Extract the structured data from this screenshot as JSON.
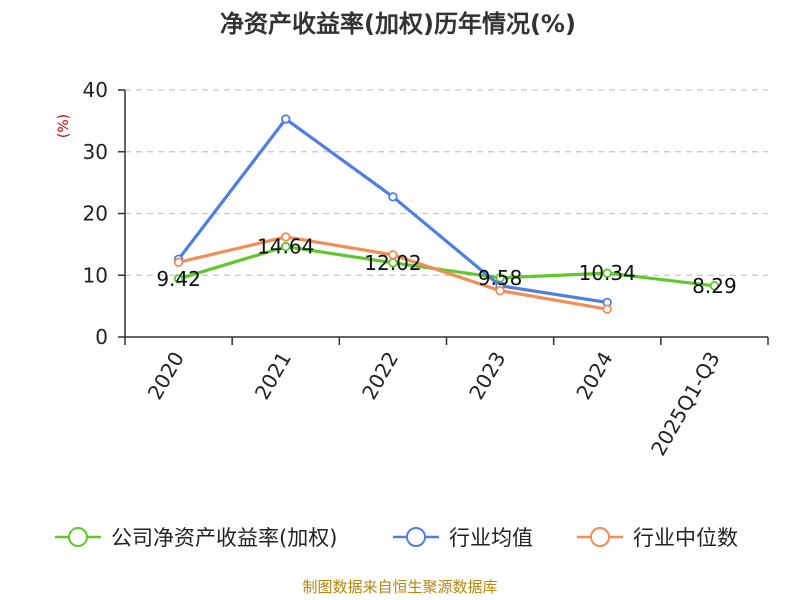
{
  "chart_data": {
    "type": "line",
    "title": "净资产收益率(加权)历年情况(%)",
    "ylabel": "(%)",
    "xlabel": "",
    "categories": [
      "2020",
      "2021",
      "2022",
      "2023",
      "2024",
      "2025Q1-Q3"
    ],
    "ylim": [
      0,
      40
    ],
    "yticks": [
      0,
      10,
      20,
      30,
      40
    ],
    "grid": true,
    "legend_position": "bottom",
    "series": [
      {
        "name": "公司净资产收益率(加权)",
        "color": "#5fc82d",
        "values": [
          9.42,
          14.64,
          12.02,
          9.58,
          10.34,
          8.29
        ],
        "labels": [
          "9.42",
          "14.64",
          "12.02",
          "9.58",
          "10.34",
          "8.29"
        ]
      },
      {
        "name": "行业均值",
        "color": "#4f7fdc",
        "values": [
          12.6,
          35.3,
          22.7,
          8.3,
          5.6,
          null
        ]
      },
      {
        "name": "行业中位数",
        "color": "#f28d58",
        "values": [
          12.1,
          16.2,
          13.3,
          7.5,
          4.5,
          null
        ]
      }
    ],
    "source": "制图数据来自恒生聚源数据库"
  }
}
